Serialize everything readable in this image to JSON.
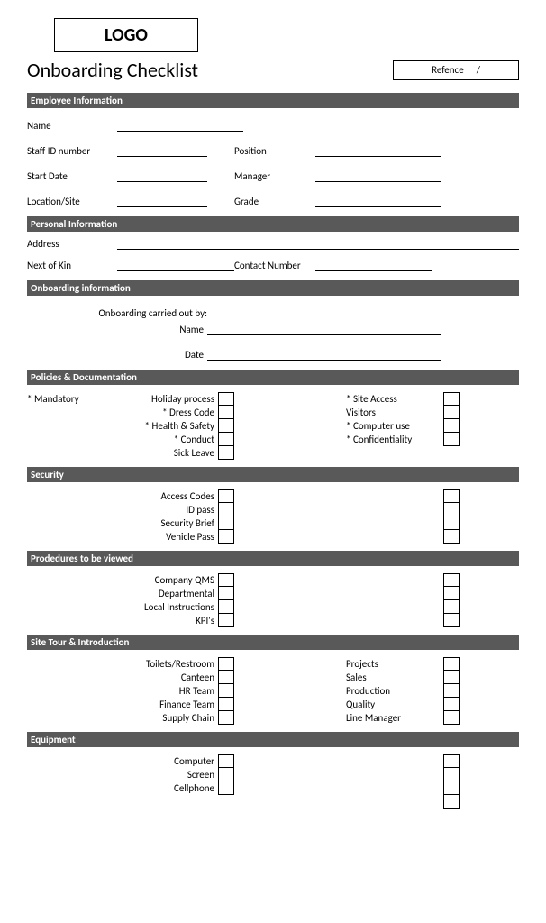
{
  "logo": "LOGO",
  "title": "Onboarding Checklist",
  "reference": {
    "label": "Refence",
    "slash": "/"
  },
  "sections": {
    "employee_info": {
      "heading": "Employee Information",
      "name": "Name",
      "staff_id": "Staff ID number",
      "position": "Position",
      "start_date": "Start Date",
      "manager": "Manager",
      "location": "Location/Site",
      "grade": "Grade"
    },
    "personal_info": {
      "heading": "Personal Information",
      "address": "Address",
      "next_of_kin": "Next of Kin",
      "contact_number": "Contact Number"
    },
    "onboarding": {
      "heading": "Onboarding information",
      "carried_out_by": "Onboarding carried out by:",
      "name": "Name",
      "date": "Date"
    },
    "policies": {
      "heading": "Policies & Documentation",
      "mandatory": "* Mandatory",
      "left": [
        "Holiday process",
        "* Dress Code",
        "* Health & Safety",
        "* Conduct",
        "Sick Leave"
      ],
      "right": [
        "* Site Access",
        "Visitors",
        "* Computer use",
        "* Confidentiality"
      ]
    },
    "security": {
      "heading": "Security",
      "left": [
        "Access Codes",
        "ID pass",
        "Security Brief",
        "Vehicle Pass"
      ]
    },
    "procedures": {
      "heading": "Prodedures to be viewed",
      "left": [
        "Company QMS",
        "Departmental",
        "Local Instructions",
        "KPI's"
      ]
    },
    "site_tour": {
      "heading": "Site Tour & Introduction",
      "left": [
        "Toilets/Restroom",
        "Canteen",
        "HR Team",
        "Finance Team",
        "Supply Chain"
      ],
      "right": [
        "Projects",
        "Sales",
        "Production",
        "Quality",
        "Line Manager"
      ]
    },
    "equipment": {
      "heading": "Equipment",
      "left": [
        "Computer",
        "Screen",
        "Cellphone"
      ]
    }
  },
  "colors": {
    "section_bg": "#595959",
    "section_fg": "#ffffff",
    "border": "#000000"
  }
}
